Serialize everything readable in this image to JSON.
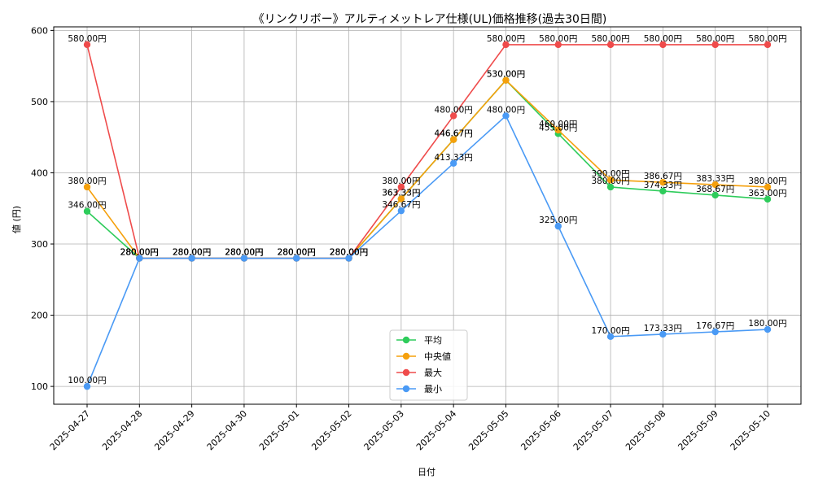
{
  "chart_data": {
    "type": "line",
    "title": "《リンクリボー》アルティメットレア仕様(UL)価格推移(過去30日間)",
    "xlabel": "日付",
    "ylabel": "値 (円)",
    "categories": [
      "2025-04-27",
      "2025-04-28",
      "2025-04-29",
      "2025-04-30",
      "2025-05-01",
      "2025-05-02",
      "2025-05-03",
      "2025-05-04",
      "2025-05-05",
      "2025-05-06",
      "2025-05-07",
      "2025-05-08",
      "2025-05-09",
      "2025-05-10"
    ],
    "yticks": [
      100,
      200,
      300,
      400,
      500,
      600
    ],
    "ylim": [
      75,
      605
    ],
    "grid": true,
    "legend_position": "bottom-center",
    "series": [
      {
        "name": "平均",
        "color": "#2ecc5b",
        "values": [
          346,
          280,
          280,
          280,
          280,
          280,
          363.33,
          446.67,
          530,
          455,
          380,
          374.33,
          368.67,
          363
        ],
        "labels": [
          "346.00円",
          "280.00円",
          "280.00円",
          "280.00円",
          "280.00円",
          "280.00円",
          "363.33円",
          "446.67円",
          "530.00円",
          "455.00円",
          "380.00円",
          "374.33円",
          "368.67円",
          "363.00円"
        ]
      },
      {
        "name": "中央値",
        "color": "#f5a00c",
        "values": [
          380,
          280,
          280,
          280,
          280,
          280,
          363.33,
          446.67,
          530,
          460,
          390,
          386.67,
          383.33,
          380
        ],
        "labels": [
          "380.00円",
          "280.00円",
          "280.00円",
          "280.00円",
          "280.00円",
          "280.00円",
          "363.33円",
          "446.67円",
          "530.00円",
          "460.00円",
          "390.00円",
          "386.67円",
          "383.33円",
          "380.00円"
        ]
      },
      {
        "name": "最大",
        "color": "#ef4b4b",
        "values": [
          580,
          280,
          280,
          280,
          280,
          280,
          380,
          480,
          580,
          580,
          580,
          580,
          580,
          580
        ],
        "labels": [
          "580.00円",
          "280.00円",
          "280.00円",
          "280.00円",
          "280.00円",
          "280.00円",
          "380.00円",
          "480.00円",
          "580.00円",
          "580.00円",
          "580.00円",
          "580.00円",
          "580.00円",
          "580.00円"
        ]
      },
      {
        "name": "最小",
        "color": "#4a9af5",
        "values": [
          100,
          280,
          280,
          280,
          280,
          280,
          346.67,
          413.33,
          480,
          325,
          170,
          173.33,
          176.67,
          180
        ],
        "labels": [
          "100.00円",
          "280.00円",
          "280.00円",
          "280.00円",
          "280.00円",
          "280.00円",
          "346.67円",
          "413.33円",
          "480.00円",
          "325.00円",
          "170.00円",
          "173.33円",
          "176.67円",
          "180.00円"
        ]
      }
    ]
  }
}
